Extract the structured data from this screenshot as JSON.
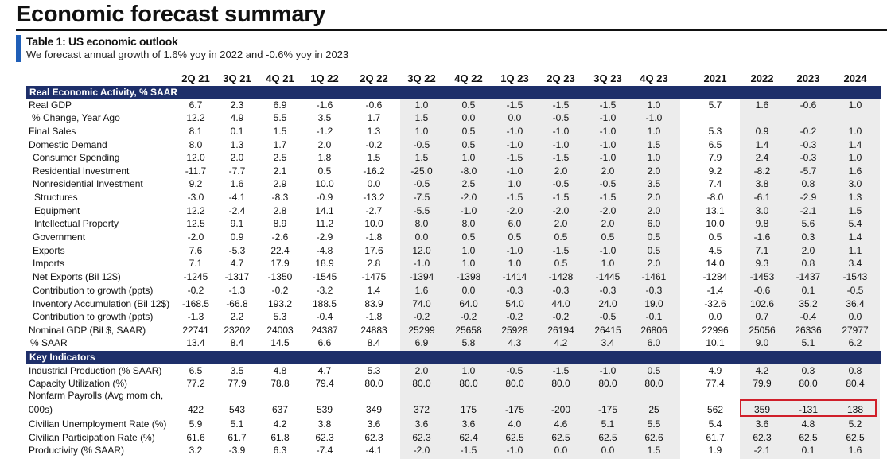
{
  "page": {
    "title": "Economic forecast summary",
    "table_title": "Table 1: US economic outlook",
    "subtitle": "We forecast annual growth of 1.6% yoy in 2022 and -0.6% yoy in 2023",
    "colors": {
      "section_bar": "#1e2f6a",
      "accent": "#1f5fb8",
      "forecast_shade": "#ececec",
      "highlight": "#d01f2a"
    }
  },
  "columns": [
    "2Q 21",
    "3Q 21",
    "4Q 21",
    "1Q 22",
    "2Q 22",
    "3Q 22",
    "4Q 22",
    "1Q 23",
    "2Q 23",
    "3Q 23",
    "4Q 23",
    "2021",
    "2022",
    "2023",
    "2024"
  ],
  "sections": [
    {
      "title": "Real Economic Activity, % SAAR",
      "rows": [
        {
          "label": "Real GDP",
          "values": [
            "6.7",
            "2.3",
            "6.9",
            "-1.6",
            "-0.6",
            "1.0",
            "0.5",
            "-1.5",
            "-1.5",
            "-1.5",
            "1.0",
            "5.7",
            "1.6",
            "-0.6",
            "1.0"
          ]
        },
        {
          "label": "% Change, Year Ago",
          "values": [
            "12.2",
            "4.9",
            "5.5",
            "3.5",
            "1.7",
            "1.5",
            "0.0",
            "0.0",
            "-0.5",
            "-1.0",
            "-1.0",
            "",
            "",
            "",
            ""
          ]
        },
        {
          "label": "Final Sales",
          "values": [
            "8.1",
            "0.1",
            "1.5",
            "-1.2",
            "1.3",
            "1.0",
            "0.5",
            "-1.0",
            "-1.0",
            "-1.0",
            "1.0",
            "5.3",
            "0.9",
            "-0.2",
            "1.0"
          ]
        },
        {
          "label": "Domestic Demand",
          "values": [
            "8.0",
            "1.3",
            "1.7",
            "2.0",
            "-0.2",
            "-0.5",
            "0.5",
            "-1.0",
            "-1.0",
            "-1.0",
            "1.5",
            "6.5",
            "1.4",
            "-0.3",
            "1.4"
          ]
        },
        {
          "label": "Consumer Spending",
          "values": [
            "12.0",
            "2.0",
            "2.5",
            "1.8",
            "1.5",
            "1.5",
            "1.0",
            "-1.5",
            "-1.5",
            "-1.0",
            "1.0",
            "7.9",
            "2.4",
            "-0.3",
            "1.0"
          ]
        },
        {
          "label": "Residential Investment",
          "values": [
            "-11.7",
            "-7.7",
            "2.1",
            "0.5",
            "-16.2",
            "-25.0",
            "-8.0",
            "-1.0",
            "2.0",
            "2.0",
            "2.0",
            "9.2",
            "-8.2",
            "-5.7",
            "1.6"
          ]
        },
        {
          "label": "Nonresidential Investment",
          "values": [
            "9.2",
            "1.6",
            "2.9",
            "10.0",
            "0.0",
            "-0.5",
            "2.5",
            "1.0",
            "-0.5",
            "-0.5",
            "3.5",
            "7.4",
            "3.8",
            "0.8",
            "3.0"
          ]
        },
        {
          "label": "Structures",
          "values": [
            "-3.0",
            "-4.1",
            "-8.3",
            "-0.9",
            "-13.2",
            "-7.5",
            "-2.0",
            "-1.5",
            "-1.5",
            "-1.5",
            "2.0",
            "-8.0",
            "-6.1",
            "-2.9",
            "1.3"
          ]
        },
        {
          "label": "Equipment",
          "values": [
            "12.2",
            "-2.4",
            "2.8",
            "14.1",
            "-2.7",
            "-5.5",
            "-1.0",
            "-2.0",
            "-2.0",
            "-2.0",
            "2.0",
            "13.1",
            "3.0",
            "-2.1",
            "1.5"
          ]
        },
        {
          "label": "Intellectual Property",
          "values": [
            "12.5",
            "9.1",
            "8.9",
            "11.2",
            "10.0",
            "8.0",
            "8.0",
            "6.0",
            "2.0",
            "2.0",
            "6.0",
            "10.0",
            "9.8",
            "5.6",
            "5.4"
          ]
        },
        {
          "label": "Government",
          "values": [
            "-2.0",
            "0.9",
            "-2.6",
            "-2.9",
            "-1.8",
            "0.0",
            "0.5",
            "0.5",
            "0.5",
            "0.5",
            "0.5",
            "0.5",
            "-1.6",
            "0.3",
            "1.4"
          ]
        },
        {
          "label": "Exports",
          "values": [
            "7.6",
            "-5.3",
            "22.4",
            "-4.8",
            "17.6",
            "12.0",
            "1.0",
            "-1.0",
            "-1.5",
            "-1.0",
            "0.5",
            "4.5",
            "7.1",
            "2.0",
            "1.1"
          ]
        },
        {
          "label": "Imports",
          "values": [
            "7.1",
            "4.7",
            "17.9",
            "18.9",
            "2.8",
            "-1.0",
            "1.0",
            "1.0",
            "0.5",
            "1.0",
            "2.0",
            "14.0",
            "9.3",
            "0.8",
            "3.4"
          ]
        },
        {
          "label": "Net Exports (Bil 12$)",
          "values": [
            "-1245",
            "-1317",
            "-1350",
            "-1545",
            "-1475",
            "-1394",
            "-1398",
            "-1414",
            "-1428",
            "-1445",
            "-1461",
            "-1284",
            "-1453",
            "-1437",
            "-1543"
          ]
        },
        {
          "label": "Contribution to growth (ppts)",
          "values": [
            "-0.2",
            "-1.3",
            "-0.2",
            "-3.2",
            "1.4",
            "1.6",
            "0.0",
            "-0.3",
            "-0.3",
            "-0.3",
            "-0.3",
            "-1.4",
            "-0.6",
            "0.1",
            "-0.5"
          ]
        },
        {
          "label": "Inventory Accumulation (Bil 12$)",
          "values": [
            "-168.5",
            "-66.8",
            "193.2",
            "188.5",
            "83.9",
            "74.0",
            "64.0",
            "54.0",
            "44.0",
            "24.0",
            "19.0",
            "-32.6",
            "102.6",
            "35.2",
            "36.4"
          ]
        },
        {
          "label": "Contribution to growth (ppts)",
          "values": [
            "-1.3",
            "2.2",
            "5.3",
            "-0.4",
            "-1.8",
            "-0.2",
            "-0.2",
            "-0.2",
            "-0.2",
            "-0.5",
            "-0.1",
            "0.0",
            "0.7",
            "-0.4",
            "0.0"
          ]
        },
        {
          "label": "Nominal GDP (Bil $, SAAR)",
          "values": [
            "22741",
            "23202",
            "24003",
            "24387",
            "24883",
            "25299",
            "25658",
            "25928",
            "26194",
            "26415",
            "26806",
            "22996",
            "25056",
            "26336",
            "27977"
          ]
        },
        {
          "label": "% SAAR",
          "values": [
            "13.4",
            "8.4",
            "14.5",
            "6.6",
            "8.4",
            "6.9",
            "5.8",
            "4.3",
            "4.2",
            "3.4",
            "6.0",
            "10.1",
            "9.0",
            "5.1",
            "6.2"
          ]
        }
      ]
    },
    {
      "title": "Key Indicators",
      "rows": [
        {
          "label": "Industrial Production (% SAAR)",
          "values": [
            "6.5",
            "3.5",
            "4.8",
            "4.7",
            "5.3",
            "2.0",
            "1.0",
            "-0.5",
            "-1.5",
            "-1.0",
            "0.5",
            "4.9",
            "4.2",
            "0.3",
            "0.8"
          ]
        },
        {
          "label": "Capacity Utilization  (%)",
          "values": [
            "77.2",
            "77.9",
            "78.8",
            "79.4",
            "80.0",
            "80.0",
            "80.0",
            "80.0",
            "80.0",
            "80.0",
            "80.0",
            "77.4",
            "79.9",
            "80.0",
            "80.4"
          ]
        },
        {
          "label": "Nonfarm Payrolls (Avg mom ch,",
          "label2": "000s)",
          "values": [
            "422",
            "543",
            "637",
            "539",
            "349",
            "372",
            "175",
            "-175",
            "-200",
            "-175",
            "25",
            "562",
            "359",
            "-131",
            "138"
          ]
        },
        {
          "label": "Civilian Unemployment Rate (%)",
          "values": [
            "5.9",
            "5.1",
            "4.2",
            "3.8",
            "3.6",
            "3.6",
            "3.6",
            "4.0",
            "4.6",
            "5.1",
            "5.5",
            "5.4",
            "3.6",
            "4.8",
            "5.2"
          ]
        },
        {
          "label": "Civilian Participation  Rate (%)",
          "values": [
            "61.6",
            "61.7",
            "61.8",
            "62.3",
            "62.3",
            "62.3",
            "62.4",
            "62.5",
            "62.5",
            "62.5",
            "62.6",
            "61.7",
            "62.3",
            "62.5",
            "62.5"
          ]
        },
        {
          "label": "Productivity  (% SAAR)",
          "values": [
            "3.2",
            "-3.9",
            "6.3",
            "-7.4",
            "-4.1",
            "-2.0",
            "-1.5",
            "-1.0",
            "0.0",
            "0.0",
            "1.5",
            "1.9",
            "-2.1",
            "0.1",
            "1.6"
          ]
        }
      ]
    }
  ]
}
